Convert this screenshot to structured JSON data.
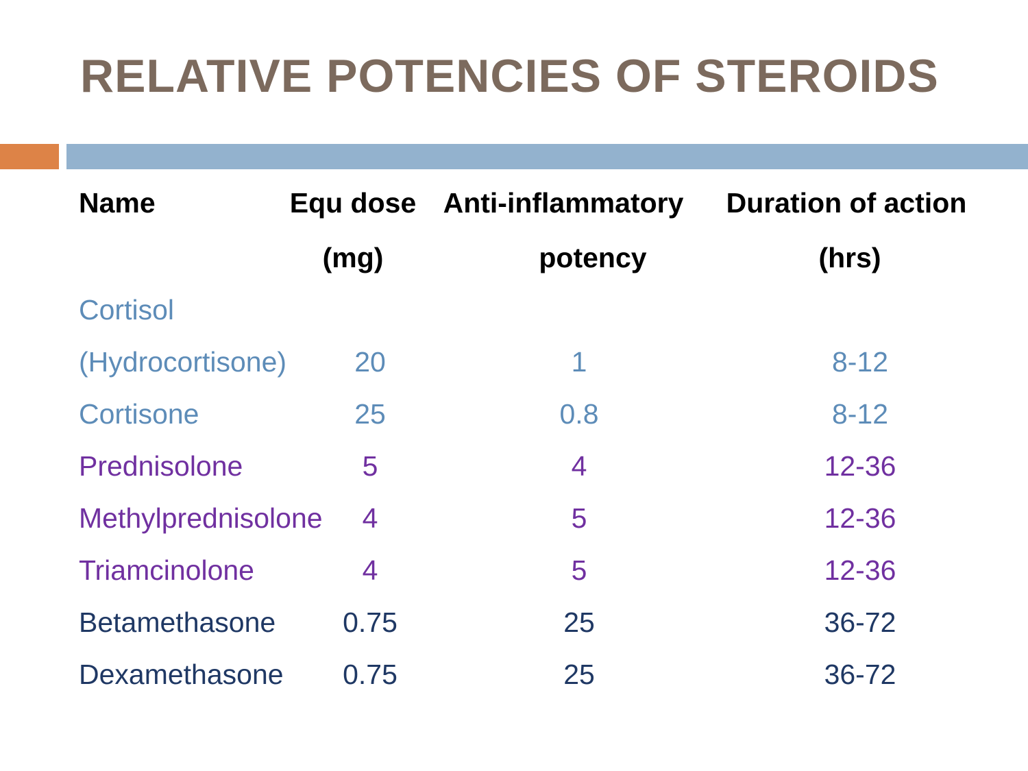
{
  "slide": {
    "title": "RELATIVE POTENCIES OF STEROIDS"
  },
  "colors": {
    "title": "#7c6a5d",
    "accent_orange": "#dd8347",
    "accent_blue": "#93b2ce",
    "header_text": "#000000",
    "row_blue": "#5d8cb8",
    "row_purple": "#7030a0",
    "row_navy": "#1f3864"
  },
  "table": {
    "headers": {
      "name": "Name",
      "dose_line1": "Equ dose",
      "dose_line2": "(mg)",
      "potency_line1": "Anti-inflammatory",
      "potency_line2": "potency",
      "duration_line1": "Duration of action",
      "duration_line2": "(hrs)"
    },
    "rows": [
      {
        "name": "Cortisol",
        "dose": "",
        "potency": "",
        "duration": "",
        "color": "blue"
      },
      {
        "name": "(Hydrocortisone)",
        "dose": "20",
        "potency": "1",
        "duration": "8-12",
        "color": "blue"
      },
      {
        "name": "Cortisone",
        "dose": "25",
        "potency": "0.8",
        "duration": "8-12",
        "color": "blue"
      },
      {
        "name": "Prednisolone",
        "dose": "5",
        "potency": "4",
        "duration": "12-36",
        "color": "purple"
      },
      {
        "name": "Methylprednisolone",
        "dose": "4",
        "potency": "5",
        "duration": "12-36",
        "color": "purple"
      },
      {
        "name": "Triamcinolone",
        "dose": "4",
        "potency": "5",
        "duration": "12-36",
        "color": "purple"
      },
      {
        "name": "Betamethasone",
        "dose": "0.75",
        "potency": "25",
        "duration": "36-72",
        "color": "navy"
      },
      {
        "name": "Dexamethasone",
        "dose": "0.75",
        "potency": "25",
        "duration": "36-72",
        "color": "navy"
      }
    ]
  }
}
